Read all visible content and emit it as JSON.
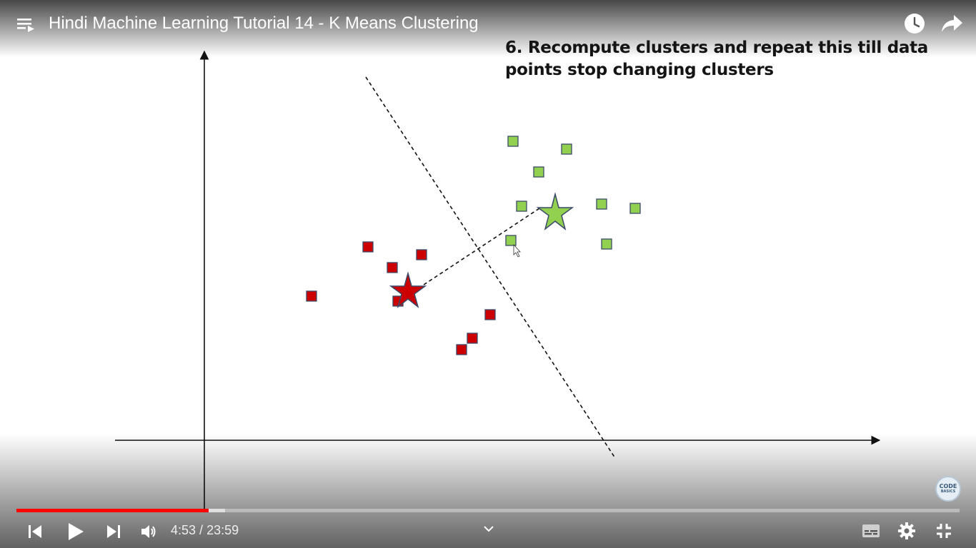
{
  "header": {
    "video_title": "Hindi Machine Learning Tutorial 14 - K Means Clustering"
  },
  "slide": {
    "heading": "6. Recompute clusters and repeat this till data points stop changing clusters",
    "logo_line1": "CODE",
    "logo_line2": "BASICS",
    "cluster_colors": {
      "red": "#cc0000",
      "green": "#92d050"
    },
    "icons": [
      "star-icon",
      "square-marker"
    ]
  },
  "player": {
    "current_time": "4:53",
    "separator": "/",
    "duration": "23:59",
    "progress_played_fraction": 0.204,
    "buffered_fraction": 0.221,
    "accent_color": "#ff0000",
    "icons": [
      "playlist-icon",
      "clock-icon",
      "share-icon",
      "previous-icon",
      "play-icon",
      "next-icon",
      "volume-icon",
      "chevron-down-icon",
      "subtitles-icon",
      "gear-icon",
      "exit-fullscreen-icon"
    ]
  }
}
